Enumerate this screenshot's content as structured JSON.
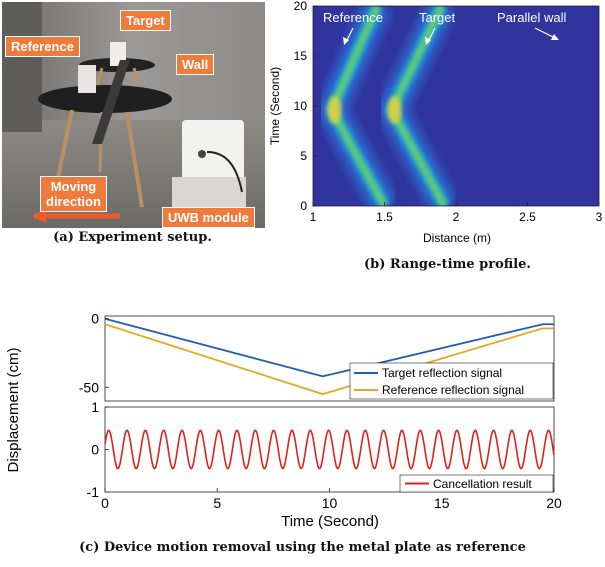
{
  "photo_labels": {
    "target": "Target",
    "reference": "Reference",
    "wall": "Wall",
    "moving_direction": "Moving\ndirection",
    "uwb_module": "UWB module"
  },
  "captions": {
    "a": "(a) Experiment setup.",
    "b": "(b) Range-time profile.",
    "c": "(c) Device motion removal using the metal plate as reference"
  },
  "chart_data": [
    {
      "type": "heatmap",
      "xlabel": "Distance (m)",
      "ylabel": "Time (Second)",
      "xlim": [
        1,
        3
      ],
      "ylim": [
        0,
        20
      ],
      "xticks": [
        "1",
        "1.5",
        "2",
        "2.5",
        "3"
      ],
      "yticks": [
        "0",
        "5",
        "10",
        "15",
        "20"
      ],
      "annotations": [
        "Reference",
        "Target",
        "Parallel wall"
      ],
      "traces": [
        {
          "name": "Reference",
          "t": [
            0,
            9.6,
            20
          ],
          "d": [
            1.5,
            1.13,
            1.45
          ]
        },
        {
          "name": "Target",
          "t": [
            0,
            9.6,
            20
          ],
          "d": [
            1.92,
            1.55,
            1.9
          ]
        },
        {
          "name": "Parallel wall",
          "t": [
            0,
            20
          ],
          "d": [
            2.83,
            2.83
          ]
        }
      ],
      "colormap": "parula"
    },
    {
      "type": "line",
      "ylabel": "Displacement (cm)",
      "xlim": [
        0,
        20
      ],
      "ylim": [
        -60,
        2
      ],
      "yticks": [
        "0",
        "-50"
      ],
      "legend": "bottom-right",
      "series": [
        {
          "name": "Target reflection signal",
          "color": "#1f5fb0",
          "x": [
            0,
            9.7,
            19.5,
            20
          ],
          "y": [
            0,
            -42,
            -4,
            -4
          ]
        },
        {
          "name": "Reference reflection signal",
          "color": "#e6a91c",
          "x": [
            0,
            9.7,
            19.5,
            20
          ],
          "y": [
            -4,
            -55,
            -7,
            -7
          ]
        }
      ]
    },
    {
      "type": "line",
      "xlabel": "Time (Second)",
      "xlim": [
        0,
        20
      ],
      "ylim": [
        -1,
        1
      ],
      "xticks": [
        "0",
        "5",
        "10",
        "15",
        "20"
      ],
      "yticks": [
        "1",
        "0",
        "-1"
      ],
      "legend": "bottom-right",
      "series": [
        {
          "name": "Cancellation result",
          "color": "#e0201b",
          "amplitude": 0.45,
          "cycles": 24.5
        }
      ]
    }
  ]
}
